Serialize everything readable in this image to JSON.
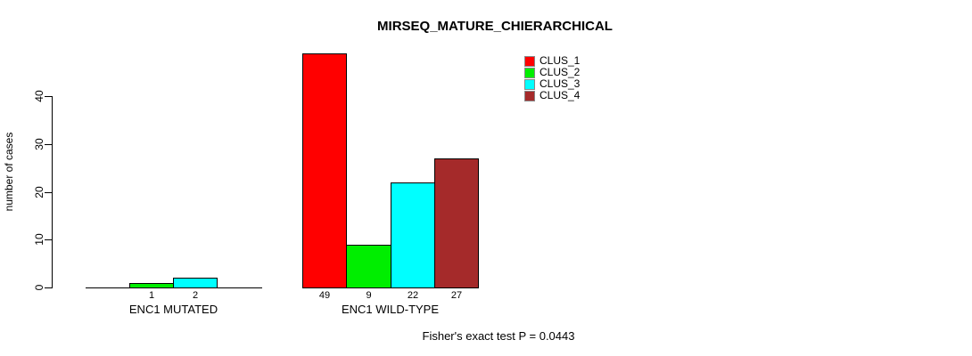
{
  "annotation": "Fisher's exact test P = 0.0443",
  "chart_data": {
    "type": "bar",
    "title": "MIRSEQ_MATURE_CHIERARCHICAL",
    "xlabel": "",
    "ylabel": "number of cases",
    "categories": [
      "ENC1 MUTATED",
      "ENC1 WILD-TYPE"
    ],
    "series": [
      {
        "name": "CLUS_1",
        "color": "#FF0000",
        "values": [
          0,
          49
        ]
      },
      {
        "name": "CLUS_2",
        "color": "#00EE00",
        "values": [
          1,
          9
        ]
      },
      {
        "name": "CLUS_3",
        "color": "#00FFFF",
        "values": [
          2,
          22
        ]
      },
      {
        "name": "CLUS_4",
        "color": "#A52A2A",
        "values": [
          0,
          27
        ]
      }
    ],
    "bar_value_labels_shown": true,
    "yticks": [
      0,
      10,
      20,
      30,
      40
    ],
    "ylim": [
      0,
      49
    ],
    "grid": false,
    "legend_position": "top-right",
    "axis_color": "#000000",
    "background_color": "#FFFFFF"
  }
}
